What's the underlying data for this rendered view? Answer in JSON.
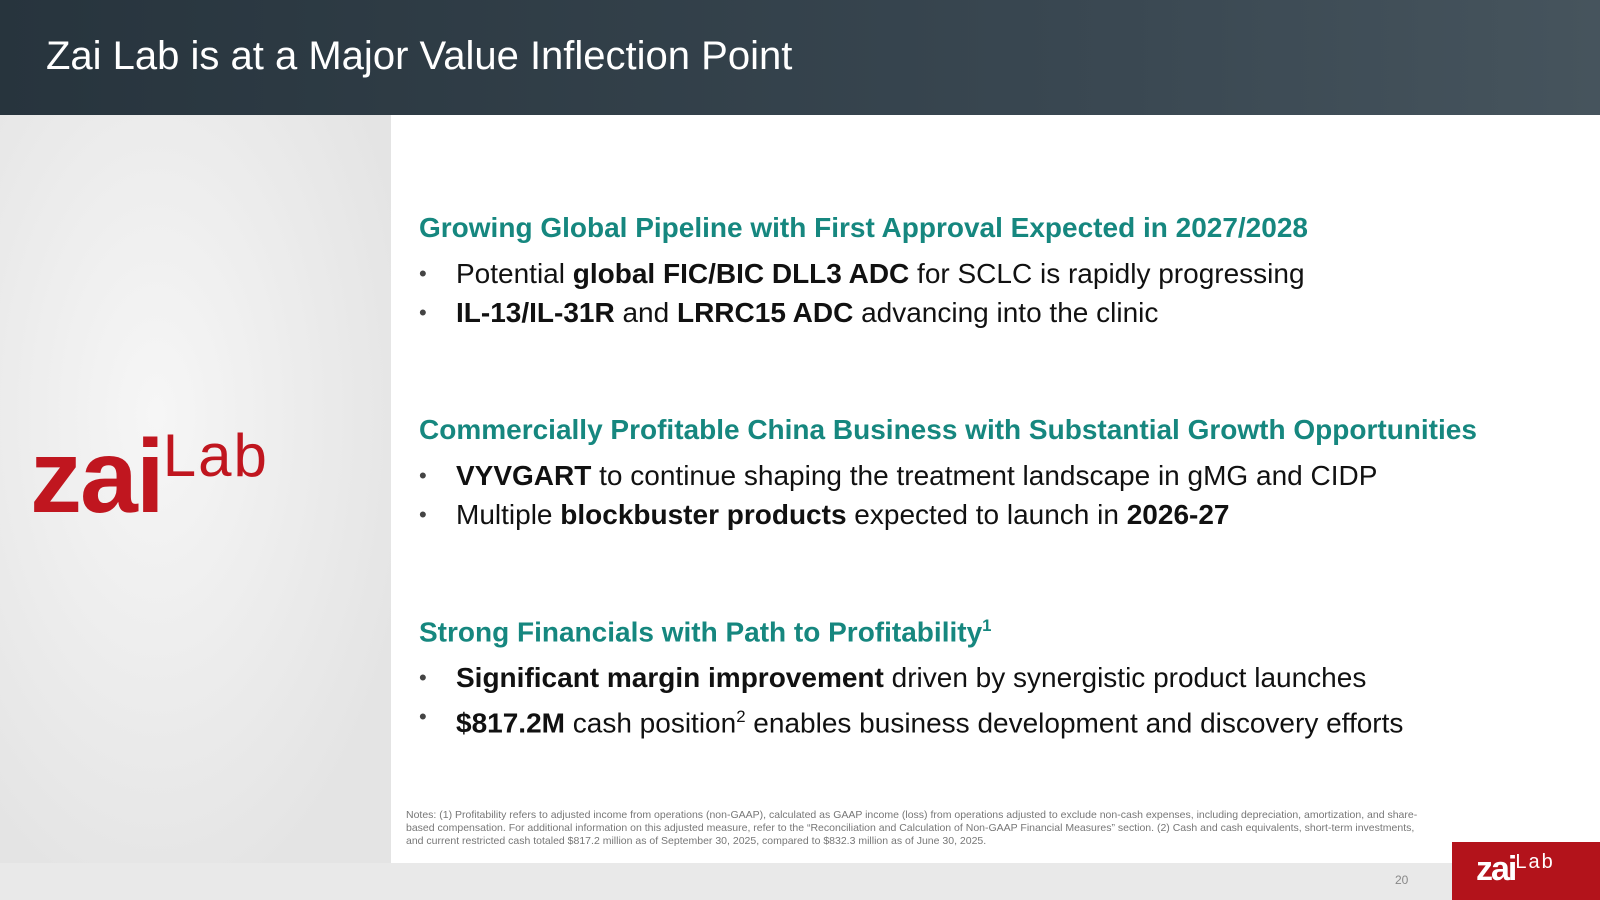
{
  "header": {
    "title": "Zai Lab is at a Major Value Inflection Point"
  },
  "logo": {
    "main": "zai",
    "sub": "Lab"
  },
  "sections": [
    {
      "heading": [
        {
          "text": "Growing Global Pipeline with First Approval Expected in 2027/2028"
        }
      ],
      "bullets": [
        [
          {
            "text": "Potential "
          },
          {
            "text": "global FIC/BIC DLL3 ADC",
            "bold": true
          },
          {
            "text": " for SCLC is rapidly progressing"
          }
        ],
        [
          {
            "text": "IL-13/IL-31R",
            "bold": true
          },
          {
            "text": " and "
          },
          {
            "text": "LRRC15 ADC",
            "bold": true
          },
          {
            "text": " advancing into the clinic"
          }
        ]
      ]
    },
    {
      "heading": [
        {
          "text": "Commercially Profitable China Business with Substantial Growth Opportunities"
        }
      ],
      "bullets": [
        [
          {
            "text": "VYVGART",
            "bold": true
          },
          {
            "text": " to continue shaping the treatment landscape in gMG and CIDP"
          }
        ],
        [
          {
            "text": "Multiple "
          },
          {
            "text": "blockbuster products",
            "bold": true
          },
          {
            "text": " expected to launch in "
          },
          {
            "text": "2026-27",
            "bold": true
          }
        ]
      ]
    },
    {
      "heading": [
        {
          "text": "Strong Financials with Path to Profitability"
        },
        {
          "text": "1",
          "sup": true
        }
      ],
      "bullets": [
        [
          {
            "text": "Significant margin improvement",
            "bold": true
          },
          {
            "text": " driven by synergistic product launches"
          }
        ],
        [
          {
            "text": "$817.2M",
            "bold": true
          },
          {
            "text": " cash position"
          },
          {
            "text": "2",
            "sup": true
          },
          {
            "text": " enables business development and discovery efforts"
          }
        ]
      ]
    }
  ],
  "notes": "Notes: (1) Profitability refers to adjusted income from operations (non-GAAP), calculated as GAAP income (loss) from operations adjusted to exclude non-cash expenses, including depreciation, amortization, and share-based compensation. For additional information on this adjusted measure, refer to the “Reconciliation and Calculation of Non-GAAP Financial Measures” section. (2) Cash and cash equivalents, short-term investments, and current restricted cash totaled $817.2 million as of September 30, 2025, compared to $832.3 million as of June 30, 2025.",
  "footer": {
    "page_number": "20",
    "logo_main": "zai",
    "logo_sub": "Lab"
  }
}
